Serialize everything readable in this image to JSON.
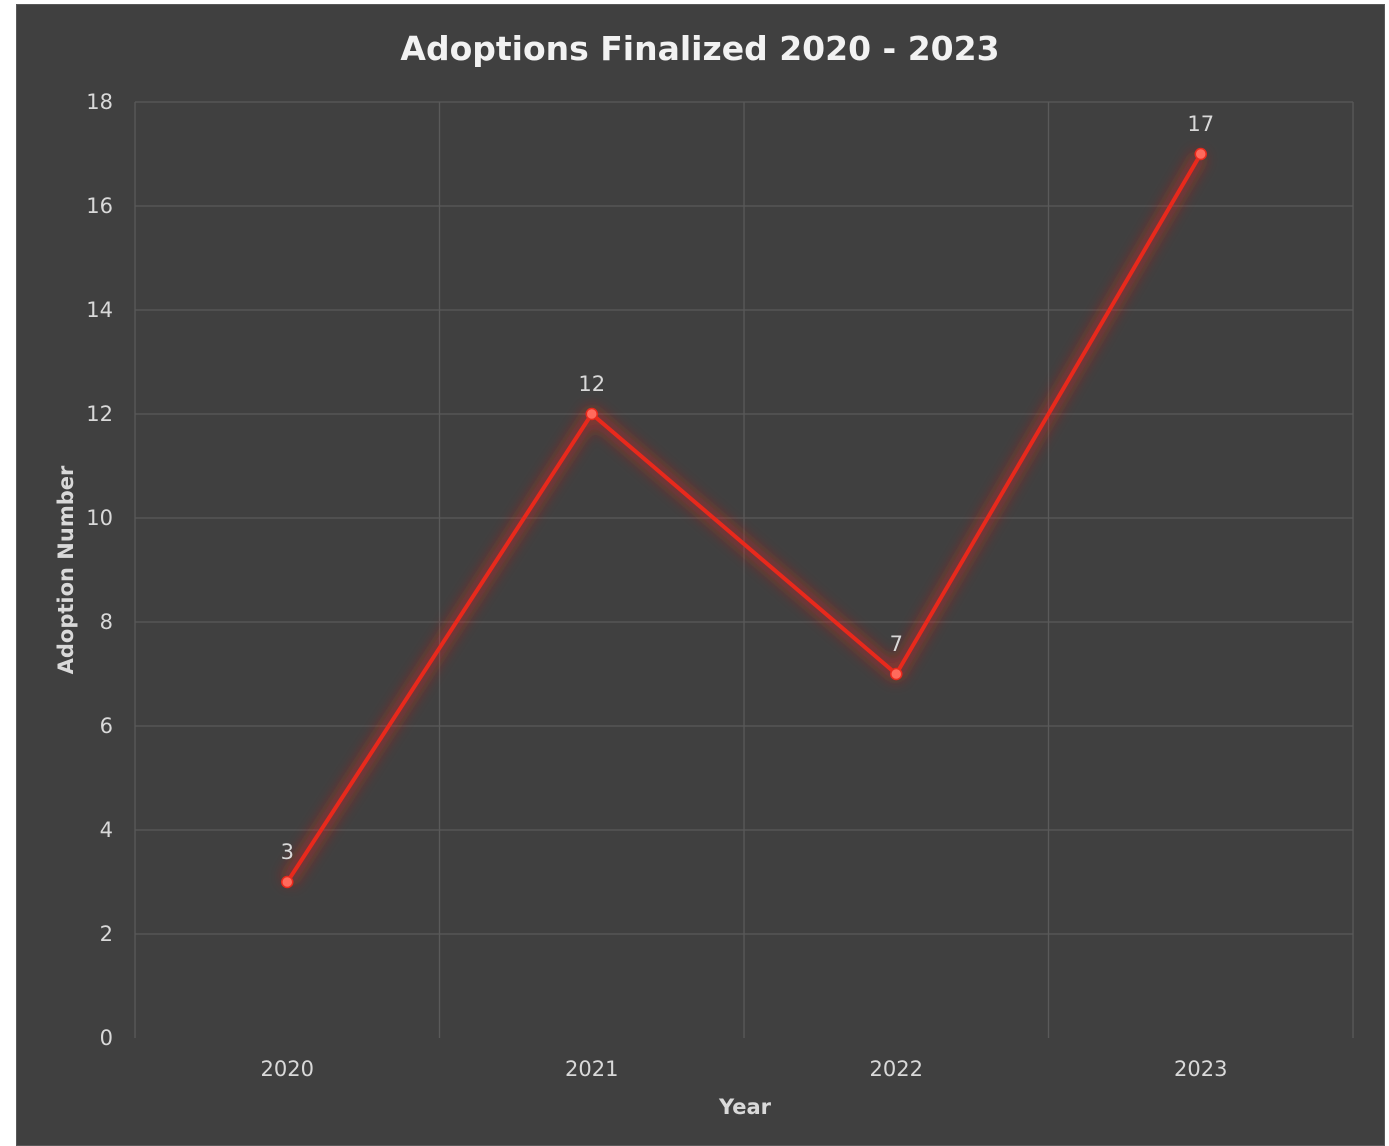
{
  "chart_data": {
    "type": "line",
    "title": "Adoptions Finalized 2020 - 2023",
    "xlabel": "Year",
    "ylabel": "Adoption Number",
    "categories": [
      "2020",
      "2021",
      "2022",
      "2023"
    ],
    "series": [
      {
        "values": [
          3,
          12,
          7,
          17
        ],
        "color": "#e8291c"
      }
    ],
    "ylim": [
      0,
      18
    ],
    "yticks": [
      "0",
      "2",
      "4",
      "6",
      "8",
      "10",
      "12",
      "14",
      "16",
      "18"
    ],
    "data_labels": [
      "3",
      "12",
      "7",
      "17"
    ],
    "grid": true,
    "legend": "none",
    "background": "#404040",
    "gridline_color": "#5a5a5a"
  }
}
